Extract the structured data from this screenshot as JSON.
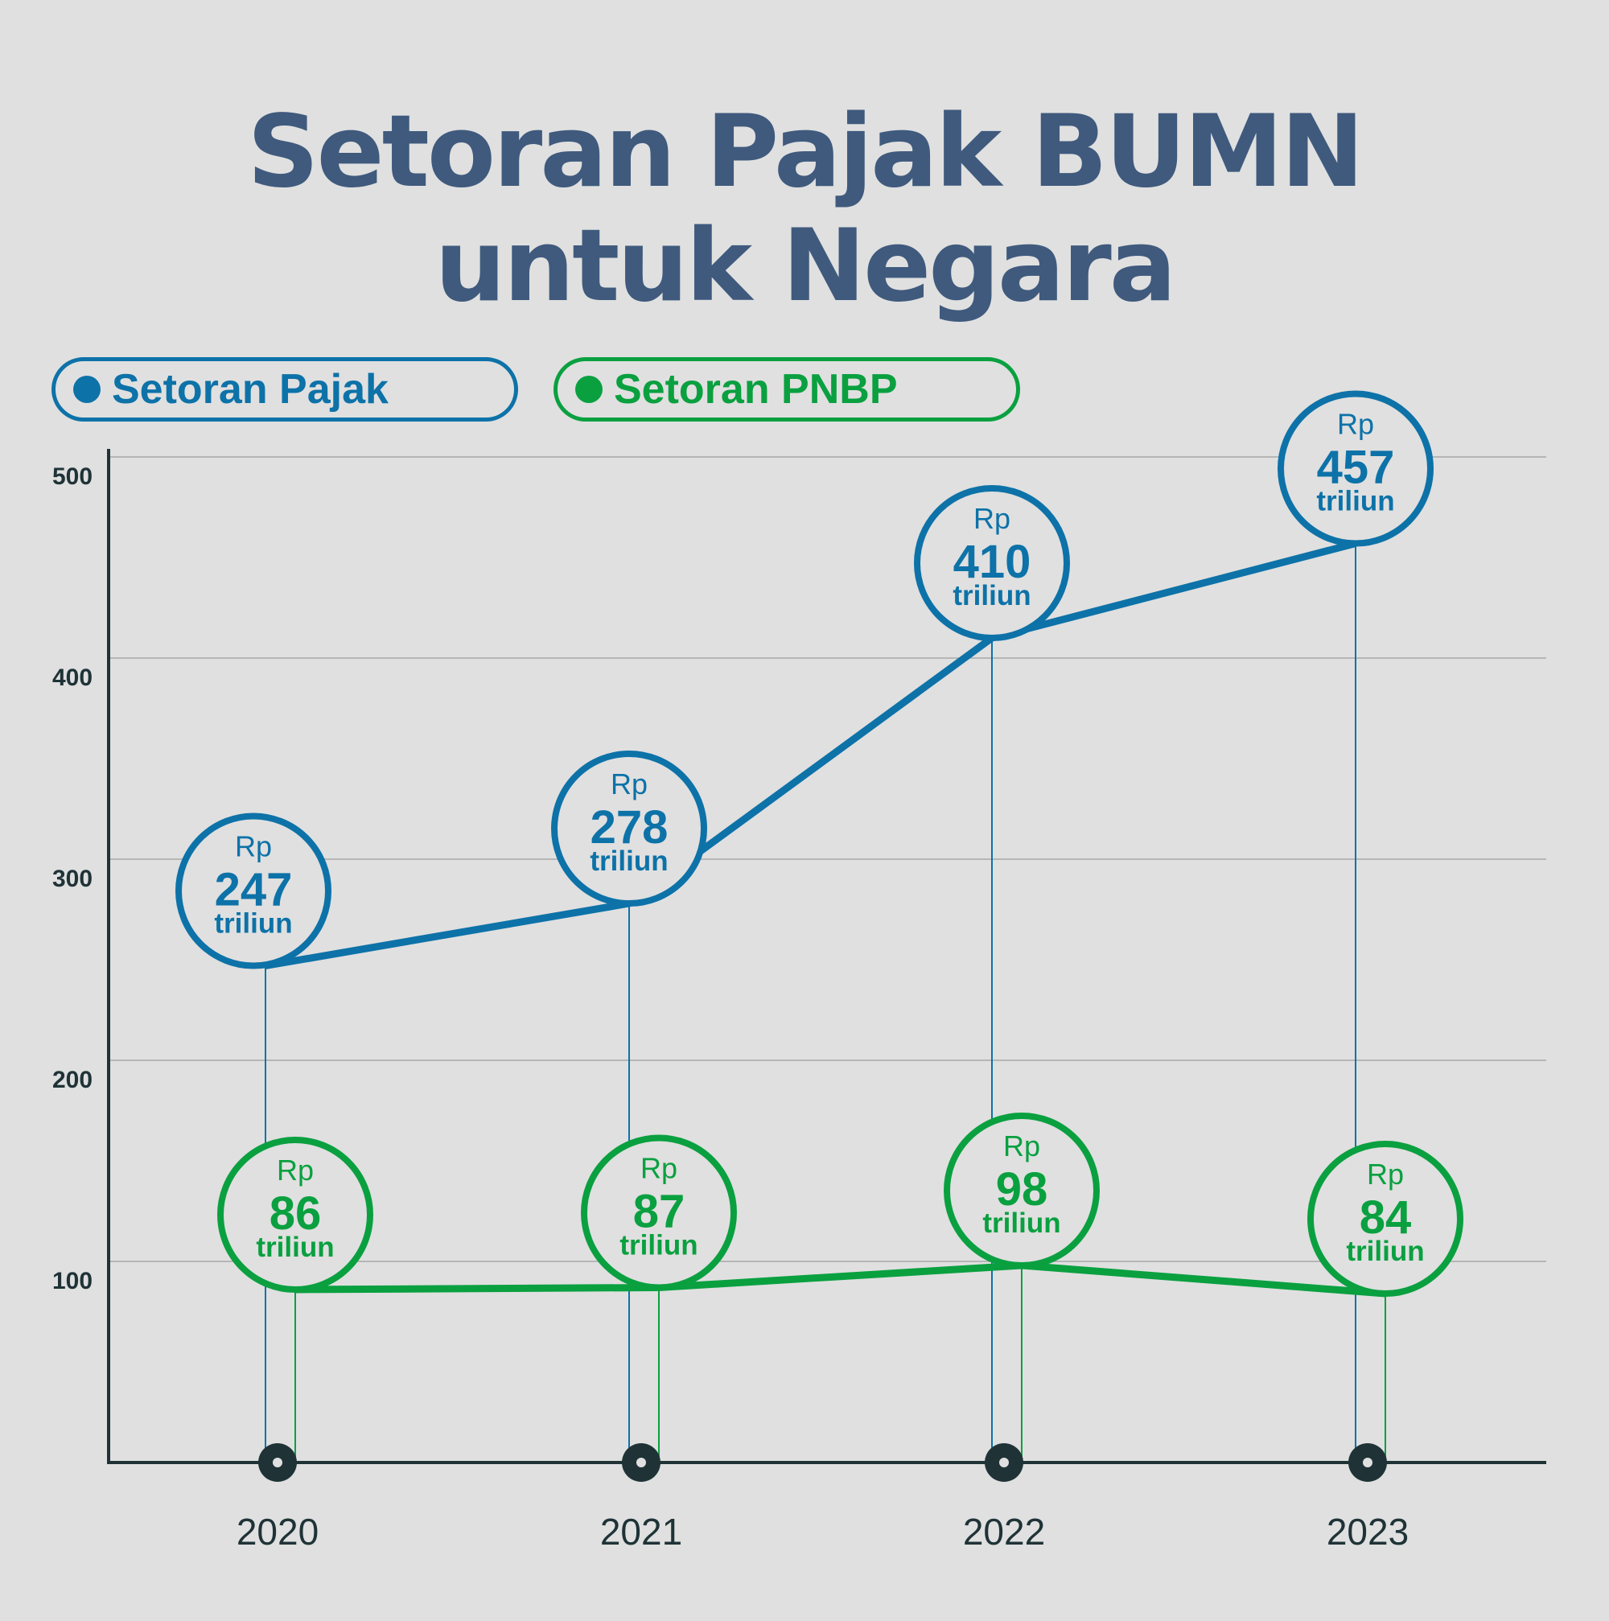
{
  "title": {
    "line1": "Setoran Pajak BUMN",
    "line2": "untuk Negara"
  },
  "colors": {
    "pajak": "#0d72a8",
    "pnbp": "#0aa040",
    "title": "#3f5a7d",
    "axis": "#1f3337",
    "grid": "#a8a8a8",
    "background": "#e0e0e0"
  },
  "legend": [
    {
      "label": "Setoran Pajak",
      "color": "#0d72a8"
    },
    {
      "label": "Setoran PNBP",
      "color": "#0aa040"
    }
  ],
  "chart_data": {
    "type": "line",
    "title": "Setoran Pajak BUMN untuk Negara",
    "xlabel": "",
    "ylabel": "",
    "categories": [
      "2020",
      "2021",
      "2022",
      "2023"
    ],
    "yticks": [
      100,
      200,
      300,
      400,
      500
    ],
    "ylim": [
      0,
      500
    ],
    "grid": true,
    "legend_position": "top-left",
    "label_prefix": "Rp",
    "label_suffix": "triliun",
    "series": [
      {
        "name": "Setoran Pajak",
        "color": "#0d72a8",
        "values": [
          247,
          278,
          410,
          457
        ]
      },
      {
        "name": "Setoran PNBP",
        "color": "#0aa040",
        "values": [
          86,
          87,
          98,
          84
        ]
      }
    ]
  }
}
